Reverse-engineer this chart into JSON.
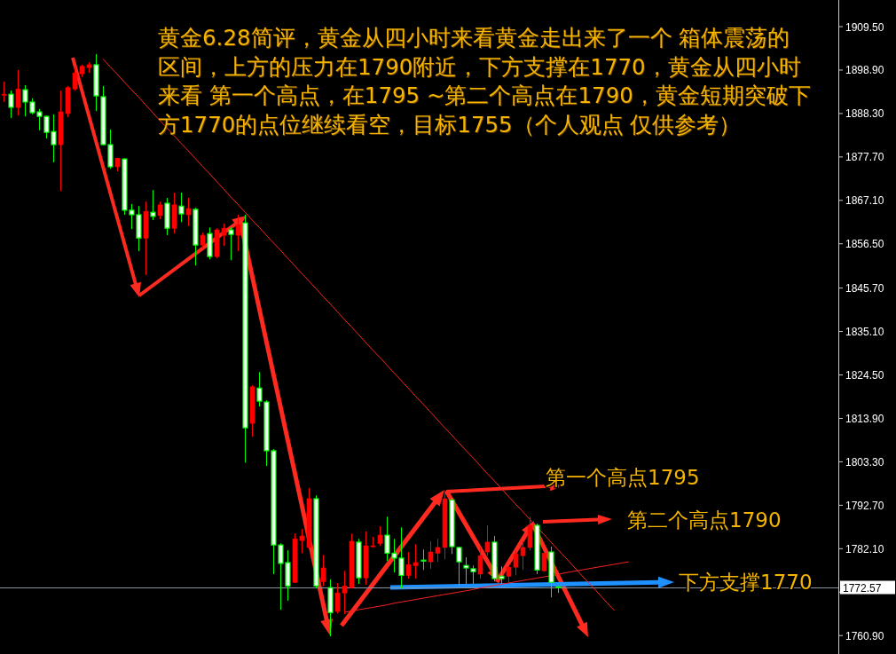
{
  "chart_data": {
    "type": "candlestick",
    "title": "黄金6.28简评，黄金从四小时来看黄金走出来了一个 箱体震荡的区间，上方的压力在1790附近，下方支撑在1770，黄金从四小时来看 第一个高点，在1795 ~第二个高点在1790，黄金短期突破下方1770的点位继续看空，目标1755（个人观点 仅供参考）",
    "categories": [
      null,
      null,
      null,
      null,
      null,
      null,
      null,
      null,
      null,
      null,
      null,
      null,
      null,
      null,
      null,
      null,
      null,
      null,
      null,
      null,
      null,
      null,
      null,
      null,
      null,
      null,
      null,
      null,
      null,
      null,
      null,
      null,
      null,
      null,
      null,
      null,
      null,
      null,
      null,
      null,
      null,
      null,
      null,
      null,
      null,
      null,
      null,
      null,
      null,
      null,
      null,
      null,
      null,
      null,
      null,
      null,
      null,
      null,
      null,
      null,
      null,
      null,
      null,
      null,
      null,
      null,
      null,
      null,
      null,
      null,
      null,
      null,
      null,
      null,
      null,
      null,
      null,
      null,
      null,
      null,
      null,
      null,
      null,
      null,
      null,
      null,
      null,
      null,
      null,
      null,
      null,
      null,
      null,
      null,
      null,
      null,
      null,
      null,
      null,
      null,
      null,
      null,
      null,
      null,
      null,
      null,
      null,
      null,
      null,
      null,
      null,
      null,
      null,
      null,
      null,
      null,
      null,
      null
    ],
    "ohlc": [
      [
        1892.8,
        1896.1,
        1891.1,
        1893.0
      ],
      [
        1893.0,
        1893.9,
        1887.2,
        1889.8
      ],
      [
        1889.8,
        1898.9,
        1887.8,
        1894.3
      ],
      [
        1894.1,
        1895.2,
        1887.6,
        1891.1
      ],
      [
        1891.1,
        1892.0,
        1888.1,
        1888.5
      ],
      [
        1888.7,
        1889.4,
        1884.2,
        1887.6
      ],
      [
        1887.6,
        1887.8,
        1882.2,
        1883.7
      ],
      [
        1883.9,
        1888.1,
        1876.4,
        1880.7
      ],
      [
        1880.7,
        1893.9,
        1869.4,
        1888.7
      ],
      [
        1888.3,
        1895.0,
        1887.4,
        1894.6
      ],
      [
        1894.3,
        1899.8,
        1893.9,
        1898.2
      ],
      [
        1898.0,
        1900.2,
        1897.2,
        1899.8
      ],
      [
        1899.5,
        1900.8,
        1898.2,
        1900.2
      ],
      [
        1900.2,
        1902.8,
        1888.9,
        1892.6
      ],
      [
        1892.4,
        1895.0,
        1880.5,
        1880.7
      ],
      [
        1880.7,
        1884.4,
        1874.8,
        1875.3
      ],
      [
        1875.3,
        1877.4,
        1874.2,
        1877.4
      ],
      [
        1877.2,
        1877.4,
        1863.6,
        1864.7
      ],
      [
        1864.7,
        1866.2,
        1860.1,
        1863.6
      ],
      [
        1863.6,
        1865.7,
        1854.7,
        1857.9
      ],
      [
        1857.9,
        1866.8,
        1848.9,
        1864.4
      ],
      [
        1864.2,
        1869.6,
        1862.3,
        1863.2
      ],
      [
        1863.4,
        1866.8,
        1862.5,
        1866.0
      ],
      [
        1866.4,
        1867.7,
        1858.6,
        1860.3
      ],
      [
        1860.3,
        1869.0,
        1859.0,
        1866.0
      ],
      [
        1865.7,
        1869.0,
        1861.8,
        1863.8
      ],
      [
        1863.6,
        1867.7,
        1860.8,
        1865.1
      ],
      [
        1864.9,
        1865.3,
        1851.2,
        1856.2
      ],
      [
        1856.2,
        1859.2,
        1855.3,
        1858.6
      ],
      [
        1859.0,
        1860.5,
        1852.7,
        1853.4
      ],
      [
        1853.4,
        1860.3,
        1853.0,
        1859.9
      ],
      [
        1858.6,
        1861.4,
        1856.0,
        1860.3
      ],
      [
        1859.9,
        1860.5,
        1852.5,
        1858.8
      ],
      [
        1858.6,
        1863.6,
        1854.7,
        1861.2
      ],
      [
        1861.6,
        1863.6,
        1803.1,
        1811.6
      ],
      [
        1812.7,
        1822.0,
        1809.4,
        1821.6
      ],
      [
        1821.3,
        1825.2,
        1816.8,
        1818.1
      ],
      [
        1817.9,
        1818.3,
        1802.3,
        1806.0
      ],
      [
        1806.0,
        1806.4,
        1775.9,
        1783.0
      ],
      [
        1783.0,
        1783.4,
        1767.2,
        1778.5
      ],
      [
        1778.7,
        1781.7,
        1769.4,
        1773.0
      ],
      [
        1773.9,
        1785.8,
        1773.7,
        1784.5
      ],
      [
        1784.1,
        1786.9,
        1781.0,
        1785.2
      ],
      [
        1782.4,
        1796.9,
        1782.4,
        1794.3
      ],
      [
        1794.3,
        1795.1,
        1772.4,
        1773.0
      ],
      [
        1774.1,
        1780.6,
        1773.0,
        1777.4
      ],
      [
        1772.6,
        1774.6,
        1760.7,
        1766.5
      ],
      [
        1766.8,
        1773.7,
        1766.3,
        1771.3
      ],
      [
        1771.3,
        1776.7,
        1766.1,
        1773.0
      ],
      [
        1772.6,
        1785.8,
        1772.4,
        1783.9
      ],
      [
        1783.7,
        1784.5,
        1773.5,
        1775.0
      ],
      [
        1775.0,
        1786.3,
        1773.3,
        1782.8
      ],
      [
        1782.6,
        1785.0,
        1782.4,
        1782.8
      ],
      [
        1783.4,
        1787.6,
        1782.8,
        1785.4
      ],
      [
        1785.4,
        1789.9,
        1779.1,
        1781.0
      ],
      [
        1781.0,
        1784.5,
        1776.3,
        1779.8
      ],
      [
        1779.8,
        1787.3,
        1772.4,
        1775.6
      ],
      [
        1775.6,
        1781.3,
        1774.8,
        1778.2
      ],
      [
        1778.0,
        1783.2,
        1774.8,
        1778.7
      ],
      [
        1779.3,
        1781.9,
        1776.9,
        1779.1
      ],
      [
        1778.9,
        1783.9,
        1777.2,
        1781.3
      ],
      [
        1781.0,
        1784.5,
        1778.9,
        1782.4
      ],
      [
        1782.4,
        1796.2,
        1779.5,
        1794.3
      ],
      [
        1794.0,
        1794.5,
        1780.8,
        1782.6
      ],
      [
        1782.4,
        1782.6,
        1773.0,
        1778.9
      ],
      [
        1778.0,
        1780.0,
        1773.5,
        1777.4
      ],
      [
        1777.2,
        1778.0,
        1773.5,
        1776.5
      ],
      [
        1775.9,
        1782.4,
        1774.8,
        1780.4
      ],
      [
        1781.3,
        1787.8,
        1780.4,
        1783.7
      ],
      [
        1783.7,
        1785.2,
        1774.1,
        1774.8
      ],
      [
        1775.4,
        1777.8,
        1773.5,
        1774.8
      ],
      [
        1775.4,
        1778.0,
        1773.5,
        1777.6
      ],
      [
        1777.6,
        1781.7,
        1775.6,
        1780.8
      ],
      [
        1780.4,
        1783.9,
        1776.9,
        1782.4
      ],
      [
        1782.4,
        1789.9,
        1781.7,
        1787.8
      ],
      [
        1787.8,
        1788.2,
        1775.9,
        1776.9
      ],
      [
        1776.7,
        1781.3,
        1776.5,
        1781.0
      ],
      [
        1781.3,
        1782.6,
        1770.2,
        1773.9
      ],
      [
        1772.8,
        1772.8,
        1771.3,
        1772.6
      ],
      null,
      null,
      null,
      null,
      null,
      null,
      null,
      null,
      null,
      null,
      null,
      null,
      null,
      null,
      null,
      null,
      null,
      null,
      null,
      null,
      null,
      null,
      null,
      null,
      null,
      null,
      null,
      null,
      null,
      null,
      null,
      null,
      null,
      null,
      null,
      null,
      null,
      null,
      null
    ],
    "colors": [
      "#ff0000",
      "#00ff00",
      "#ff0000",
      "#00ff00",
      "#00ff00",
      "#00ff00",
      "#00ff00",
      "#00ff00",
      "#ff0000",
      "#ff0000",
      "#ff0000",
      "#ff0000",
      "#ff0000",
      "#00ff00",
      "#00ff00",
      "#00ff00",
      "#ff0000",
      "#00ff00",
      "#00ff00",
      "#00ff00",
      "#ff0000",
      "#00ff00",
      "#ff0000",
      "#00ff00",
      "#ff0000",
      "#00ff00",
      "#ff0000",
      "#00ff00",
      "#ff0000",
      "#00ff00",
      "#ff0000",
      "#ff0000",
      "#00ff00",
      "#ff0000",
      "#00ff00",
      "#ff0000",
      "#00ff00",
      "#00ff00",
      "#00ff00",
      "#00ff00",
      "#00ff00",
      "#ff0000",
      "#ff0000",
      "#ff0000",
      "#00ff00",
      "#ff0000",
      "#00ff00",
      "#ff0000",
      "#ff0000",
      "#ff0000",
      "#00ff00",
      "#ff0000",
      "#ff0000",
      "#ff0000",
      "#00ff00",
      "#00ff00",
      "#00ff00",
      "#ff0000",
      "#ff0000",
      "#00ff00",
      "#ff0000",
      "#ff0000",
      "#ff0000",
      "#00ff00",
      "#00ff00",
      "#00ff00",
      "#00ff00",
      "#ff0000",
      "#ff0000",
      "#00ff00",
      "#00ff00",
      "#ff0000",
      "#ff0000",
      "#ff0000",
      "#ff0000",
      "#00ff00",
      "#ff0000",
      "#00ff00",
      "#00ff00",
      null,
      null,
      null,
      null,
      null,
      null,
      null,
      null,
      null,
      null,
      null,
      null,
      null,
      null,
      null,
      null,
      null,
      null,
      null,
      null,
      null,
      null,
      null,
      null,
      null,
      null,
      null,
      null,
      null,
      null,
      null,
      null,
      null,
      null,
      null,
      null,
      null,
      null,
      null
    ],
    "ylim": [
      1756.4,
      1916.0
    ],
    "yticks": [
      {
        "value": 1909.5,
        "label": "1909.50"
      },
      {
        "value": 1898.9,
        "label": "1898.90"
      },
      {
        "value": 1888.3,
        "label": "1888.30"
      },
      {
        "value": 1877.7,
        "label": "1877.70"
      },
      {
        "value": 1867.1,
        "label": "1867.10"
      },
      {
        "value": 1856.5,
        "label": "1856.50"
      },
      {
        "value": 1845.7,
        "label": "1845.70"
      },
      {
        "value": 1835.1,
        "label": "1835.10"
      },
      {
        "value": 1824.5,
        "label": "1824.50"
      },
      {
        "value": 1813.9,
        "label": "1813.90"
      },
      {
        "value": 1803.3,
        "label": "1803.30"
      },
      {
        "value": 1792.7,
        "label": "1792.70"
      },
      {
        "value": 1782.1,
        "label": "1782.10"
      },
      {
        "value": 1771.5,
        "label": null
      },
      {
        "value": 1760.9,
        "label": "1760.90"
      }
    ],
    "tick_labels": "y",
    "ref_lines": [
      {
        "axis": "y",
        "value": 1772.57,
        "label": "1772.57",
        "color": "#8a96a3"
      }
    ],
    "annotations": [
      "第一个高点1795",
      "第二个高点1790",
      "下方支撑1770"
    ],
    "series": [
      {
        "type": "line",
        "color": "#ff2020",
        "values": [
          null,
          null,
          null,
          null,
          null,
          null,
          null,
          null,
          null,
          null,
          null,
          null,
          null,
          null,
          1901.6,
          1899.7,
          1897.9,
          1896.0,
          1894.1,
          1892.3,
          1890.4,
          1888.5,
          1886.6,
          1884.8,
          1882.9,
          1881.0,
          1879.2,
          1877.3,
          1875.4,
          1873.6,
          1871.7,
          1869.8,
          1867.9,
          1866.1,
          1864.2,
          1862.3,
          1860.5,
          1858.6,
          1856.7,
          1854.9,
          1853.0,
          1851.1,
          1849.2,
          1847.4,
          1845.5,
          1843.6,
          1841.8,
          1839.9,
          1838.0,
          1836.2,
          1834.3,
          1832.4,
          1830.5,
          1828.7,
          1826.8,
          1824.9,
          1823.1,
          1821.2,
          1819.3,
          1817.5,
          1815.6,
          1813.7,
          1811.8,
          1810.0,
          1808.1,
          1806.2,
          1804.4,
          1802.5,
          1800.6,
          1798.8,
          1796.9,
          1795.0,
          1793.1,
          1791.3,
          1789.4,
          1787.5,
          1785.7,
          1783.8,
          1781.9,
          1780.1,
          1778.2,
          1776.3,
          1774.4,
          1772.6,
          1770.7,
          1768.8,
          1767.0,
          null,
          null,
          null,
          null,
          null,
          null,
          null,
          null,
          null,
          null,
          null,
          null,
          null,
          null,
          null,
          null,
          null,
          null,
          null,
          null,
          null,
          null,
          null,
          null,
          null,
          null,
          null,
          null,
          null,
          null,
          null
        ]
      },
      {
        "type": "line",
        "color": "#ff2020",
        "values": [
          null,
          null,
          null,
          null,
          null,
          null,
          null,
          null,
          null,
          null,
          null,
          null,
          null,
          null,
          null,
          null,
          null,
          null,
          null,
          null,
          null,
          null,
          null,
          null,
          null,
          null,
          null,
          null,
          null,
          null,
          null,
          null,
          null,
          null,
          null,
          null,
          null,
          null,
          null,
          null,
          null,
          null,
          null,
          null,
          null,
          null,
          null,
          null,
          1766.6,
          1766.9,
          1767.2,
          1767.5,
          1767.8,
          1768.1,
          1768.4,
          1768.8,
          1769.1,
          1769.4,
          1769.7,
          1770.0,
          1770.3,
          1770.6,
          1770.9,
          1771.2,
          1771.5,
          1771.8,
          1772.1,
          1772.5,
          1772.8,
          1773.1,
          1773.4,
          1773.7,
          1774.0,
          1774.3,
          1774.6,
          1774.9,
          1775.2,
          1775.5,
          1775.8,
          1776.2,
          1776.5,
          1776.8,
          1777.1,
          1777.4,
          1777.7,
          1778.0,
          1778.3,
          1778.6,
          1778.9,
          null,
          null,
          null,
          null,
          null,
          null,
          null,
          null,
          null,
          null,
          null,
          null,
          null,
          null,
          null,
          null,
          null,
          null,
          null,
          null,
          null,
          null,
          null,
          null,
          null,
          null,
          null,
          null,
          null
        ]
      }
    ]
  }
}
